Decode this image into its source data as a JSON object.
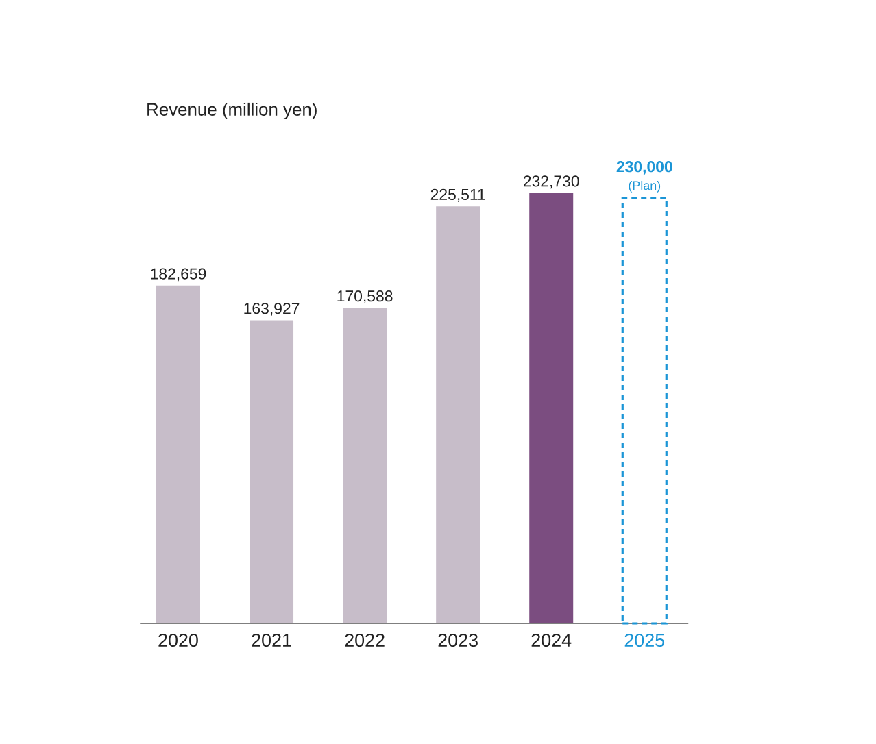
{
  "chart_data": {
    "type": "bar",
    "title": "Revenue (million yen)",
    "categories": [
      "2020",
      "2021",
      "2022",
      "2023",
      "2024",
      "2025"
    ],
    "series": [
      {
        "colors": [
          "#c7bdc9",
          "#c7bdc9",
          "#c7bdc9",
          "#c7bdc9",
          "#7b4d80",
          null
        ],
        "values": [
          182659,
          163927,
          170588,
          225511,
          232730,
          null
        ],
        "value_labels": [
          "182,659",
          "163,927",
          "170,588",
          "225,511",
          "232,730",
          null
        ]
      },
      {
        "color": "#1b95d6",
        "line_style": "dashed",
        "values": [
          null,
          null,
          null,
          null,
          null,
          230000
        ],
        "value_labels": [
          null,
          null,
          null,
          null,
          null,
          "230,000"
        ]
      }
    ],
    "annotations": [
      {
        "text": "(Plan)",
        "x": "2025",
        "y": 230000
      }
    ]
  }
}
